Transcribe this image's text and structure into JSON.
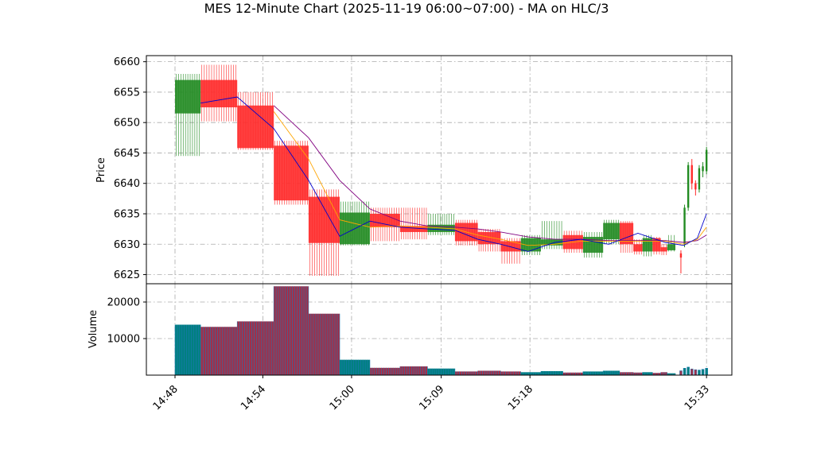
{
  "title": "MES 12-Minute Chart (2025-11-19 06:00~07:00) - MA on HLC/3",
  "chart_data": {
    "type": "candlestick",
    "title": "MES 12-Minute Chart (2025-11-19 06:00~07:00) - MA on HLC/3",
    "price_panel": {
      "ylabel": "Price",
      "ylim": [
        6623.5,
        6661
      ],
      "yticks": [
        6625,
        6630,
        6635,
        6640,
        6645,
        6650,
        6655,
        6660
      ],
      "grid": true
    },
    "volume_panel": {
      "ylabel": "Volume",
      "ylim": [
        0,
        25000
      ],
      "yticks": [
        10000,
        20000
      ],
      "grid": true
    },
    "x_ticks": [
      "14:48",
      "14:54",
      "15:00",
      "15:09",
      "15:18",
      "15:33"
    ],
    "colors": {
      "up": "#228B22",
      "down": "#FF2A2A",
      "ma_fast": "#0000CC",
      "ma_mid": "#FFA500",
      "ma_slow": "#800080",
      "volume_up": "#008080",
      "volume_down": "#A0304A",
      "volume_edge": "#1f77b4"
    },
    "segments": [
      {
        "t0": 0.0,
        "t1": 2.8,
        "open": 6651.5,
        "high": 6658.0,
        "low": 6644.5,
        "close": 6657.0,
        "volume": 13800
      },
      {
        "t0": 2.8,
        "t1": 6.8,
        "open": 6657.0,
        "high": 6659.5,
        "low": 6650.2,
        "close": 6652.5,
        "volume": 13200
      },
      {
        "t0": 6.8,
        "t1": 10.8,
        "open": 6652.8,
        "high": 6655.0,
        "low": 6645.5,
        "close": 6645.8,
        "volume": 14700
      },
      {
        "t0": 10.8,
        "t1": 14.6,
        "open": 6646.2,
        "high": 6647.0,
        "low": 6636.5,
        "close": 6637.2,
        "volume": 24300
      },
      {
        "t0": 14.6,
        "t1": 18.0,
        "open": 6637.8,
        "high": 6639.0,
        "low": 6624.8,
        "close": 6630.2,
        "volume": 16800
      },
      {
        "t0": 18.0,
        "t1": 21.3,
        "open": 6630.0,
        "high": 6637.0,
        "low": 6629.8,
        "close": 6635.2,
        "volume": 4200
      },
      {
        "t0": 21.3,
        "t1": 24.6,
        "open": 6635.0,
        "high": 6636.0,
        "low": 6630.5,
        "close": 6632.8,
        "volume": 2000
      },
      {
        "t0": 24.6,
        "t1": 27.6,
        "open": 6633.0,
        "high": 6636.0,
        "low": 6630.8,
        "close": 6632.0,
        "volume": 2400
      },
      {
        "t0": 27.6,
        "t1": 30.6,
        "open": 6632.0,
        "high": 6635.0,
        "low": 6631.5,
        "close": 6633.2,
        "volume": 1800
      },
      {
        "t0": 30.6,
        "t1": 33.1,
        "open": 6633.5,
        "high": 6634.0,
        "low": 6629.8,
        "close": 6630.5,
        "volume": 1000
      },
      {
        "t0": 33.1,
        "t1": 35.6,
        "open": 6632.0,
        "high": 6632.5,
        "low": 6628.8,
        "close": 6630.0,
        "volume": 1200
      },
      {
        "t0": 35.6,
        "t1": 37.8,
        "open": 6630.5,
        "high": 6631.0,
        "low": 6626.8,
        "close": 6628.8,
        "volume": 1000
      },
      {
        "t0": 37.8,
        "t1": 40.0,
        "open": 6628.8,
        "high": 6631.5,
        "low": 6628.2,
        "close": 6631.0,
        "volume": 800
      },
      {
        "t0": 40.0,
        "t1": 42.4,
        "open": 6629.8,
        "high": 6633.8,
        "low": 6629.2,
        "close": 6630.8,
        "volume": 1100
      },
      {
        "t0": 42.4,
        "t1": 44.6,
        "open": 6631.5,
        "high": 6632.2,
        "low": 6628.6,
        "close": 6629.2,
        "volume": 700
      },
      {
        "t0": 44.6,
        "t1": 46.8,
        "open": 6628.6,
        "high": 6632.0,
        "low": 6627.8,
        "close": 6631.2,
        "volume": 1000
      },
      {
        "t0": 46.8,
        "t1": 48.6,
        "open": 6630.8,
        "high": 6634.0,
        "low": 6630.0,
        "close": 6633.5,
        "volume": 1200
      },
      {
        "t0": 48.6,
        "t1": 50.1,
        "open": 6633.5,
        "high": 6633.8,
        "low": 6628.6,
        "close": 6630.0,
        "volume": 800
      },
      {
        "t0": 50.1,
        "t1": 51.1,
        "open": 6630.0,
        "high": 6630.8,
        "low": 6628.3,
        "close": 6628.8,
        "volume": 700
      },
      {
        "t0": 51.1,
        "t1": 52.2,
        "open": 6628.8,
        "high": 6631.5,
        "low": 6628.0,
        "close": 6631.0,
        "volume": 800
      },
      {
        "t0": 52.2,
        "t1": 53.1,
        "open": 6631.0,
        "high": 6631.2,
        "low": 6628.3,
        "close": 6628.8,
        "volume": 600
      },
      {
        "t0": 53.1,
        "t1": 53.8,
        "open": 6629.5,
        "high": 6630.0,
        "low": 6628.2,
        "close": 6628.8,
        "volume": 800
      },
      {
        "t0": 53.8,
        "t1": 54.7,
        "open": 6629.0,
        "high": 6631.5,
        "low": 6628.8,
        "close": 6630.0,
        "volume": 500
      }
    ],
    "tail_bars": [
      {
        "t": 55.3,
        "open": 6628.5,
        "high": 6629.0,
        "low": 6625.2,
        "close": 6627.8,
        "volume": 1200
      },
      {
        "t": 55.7,
        "open": 6630.0,
        "high": 6636.5,
        "low": 6629.5,
        "close": 6636.0,
        "volume": 1900
      },
      {
        "t": 56.1,
        "open": 6636.0,
        "high": 6643.5,
        "low": 6635.5,
        "close": 6643.0,
        "volume": 2200
      },
      {
        "t": 56.5,
        "open": 6643.0,
        "high": 6644.0,
        "low": 6639.0,
        "close": 6640.0,
        "volume": 1700
      },
      {
        "t": 56.9,
        "open": 6640.0,
        "high": 6640.5,
        "low": 6638.0,
        "close": 6639.0,
        "volume": 1500
      },
      {
        "t": 57.3,
        "open": 6639.0,
        "high": 6643.0,
        "low": 6638.5,
        "close": 6642.5,
        "volume": 1400
      },
      {
        "t": 57.7,
        "open": 6642.0,
        "high": 6643.5,
        "low": 6641.0,
        "close": 6642.8,
        "volume": 1600
      },
      {
        "t": 58.1,
        "open": 6642.0,
        "high": 6646.0,
        "low": 6641.5,
        "close": 6645.5,
        "volume": 1900
      }
    ],
    "ma_fast": [
      [
        2.8,
        6653.2
      ],
      [
        6.8,
        6654.2
      ],
      [
        10.8,
        6649.0
      ],
      [
        14.6,
        6640.5
      ],
      [
        18.0,
        6631.3
      ],
      [
        21.3,
        6633.8
      ],
      [
        24.6,
        6632.8
      ],
      [
        27.6,
        6632.5
      ],
      [
        30.6,
        6632.3
      ],
      [
        33.1,
        6630.8
      ],
      [
        35.6,
        6630.0
      ],
      [
        38.6,
        6628.8
      ],
      [
        41.5,
        6630.3
      ],
      [
        44.4,
        6630.8
      ],
      [
        47.4,
        6630.0
      ],
      [
        50.6,
        6631.8
      ],
      [
        53.6,
        6630.3
      ],
      [
        55.6,
        6629.8
      ],
      [
        57.1,
        6631.0
      ],
      [
        58.1,
        6635.0
      ]
    ],
    "ma_mid": [
      [
        10.8,
        6651.8
      ],
      [
        14.6,
        6644.0
      ],
      [
        18.0,
        6634.0
      ],
      [
        21.3,
        6632.8
      ],
      [
        24.6,
        6633.0
      ],
      [
        27.6,
        6632.8
      ],
      [
        30.6,
        6632.5
      ],
      [
        33.1,
        6631.5
      ],
      [
        35.6,
        6630.8
      ],
      [
        38.6,
        6629.8
      ],
      [
        41.5,
        6630.0
      ],
      [
        44.4,
        6630.5
      ],
      [
        47.4,
        6630.5
      ],
      [
        50.6,
        6630.5
      ],
      [
        53.6,
        6630.5
      ],
      [
        55.6,
        6630.0
      ],
      [
        57.1,
        6630.8
      ],
      [
        58.1,
        6632.8
      ]
    ],
    "ma_slow": [
      [
        10.8,
        6652.8
      ],
      [
        14.6,
        6647.5
      ],
      [
        18.0,
        6640.5
      ],
      [
        21.3,
        6635.8
      ],
      [
        24.6,
        6633.8
      ],
      [
        27.6,
        6633.0
      ],
      [
        30.6,
        6632.8
      ],
      [
        33.1,
        6632.5
      ],
      [
        35.6,
        6632.0
      ],
      [
        38.6,
        6631.2
      ],
      [
        41.5,
        6630.8
      ],
      [
        44.4,
        6630.8
      ],
      [
        47.4,
        6630.6
      ],
      [
        50.6,
        6630.6
      ],
      [
        53.6,
        6630.6
      ],
      [
        55.6,
        6630.3
      ],
      [
        57.1,
        6630.6
      ],
      [
        58.1,
        6631.5
      ]
    ]
  }
}
